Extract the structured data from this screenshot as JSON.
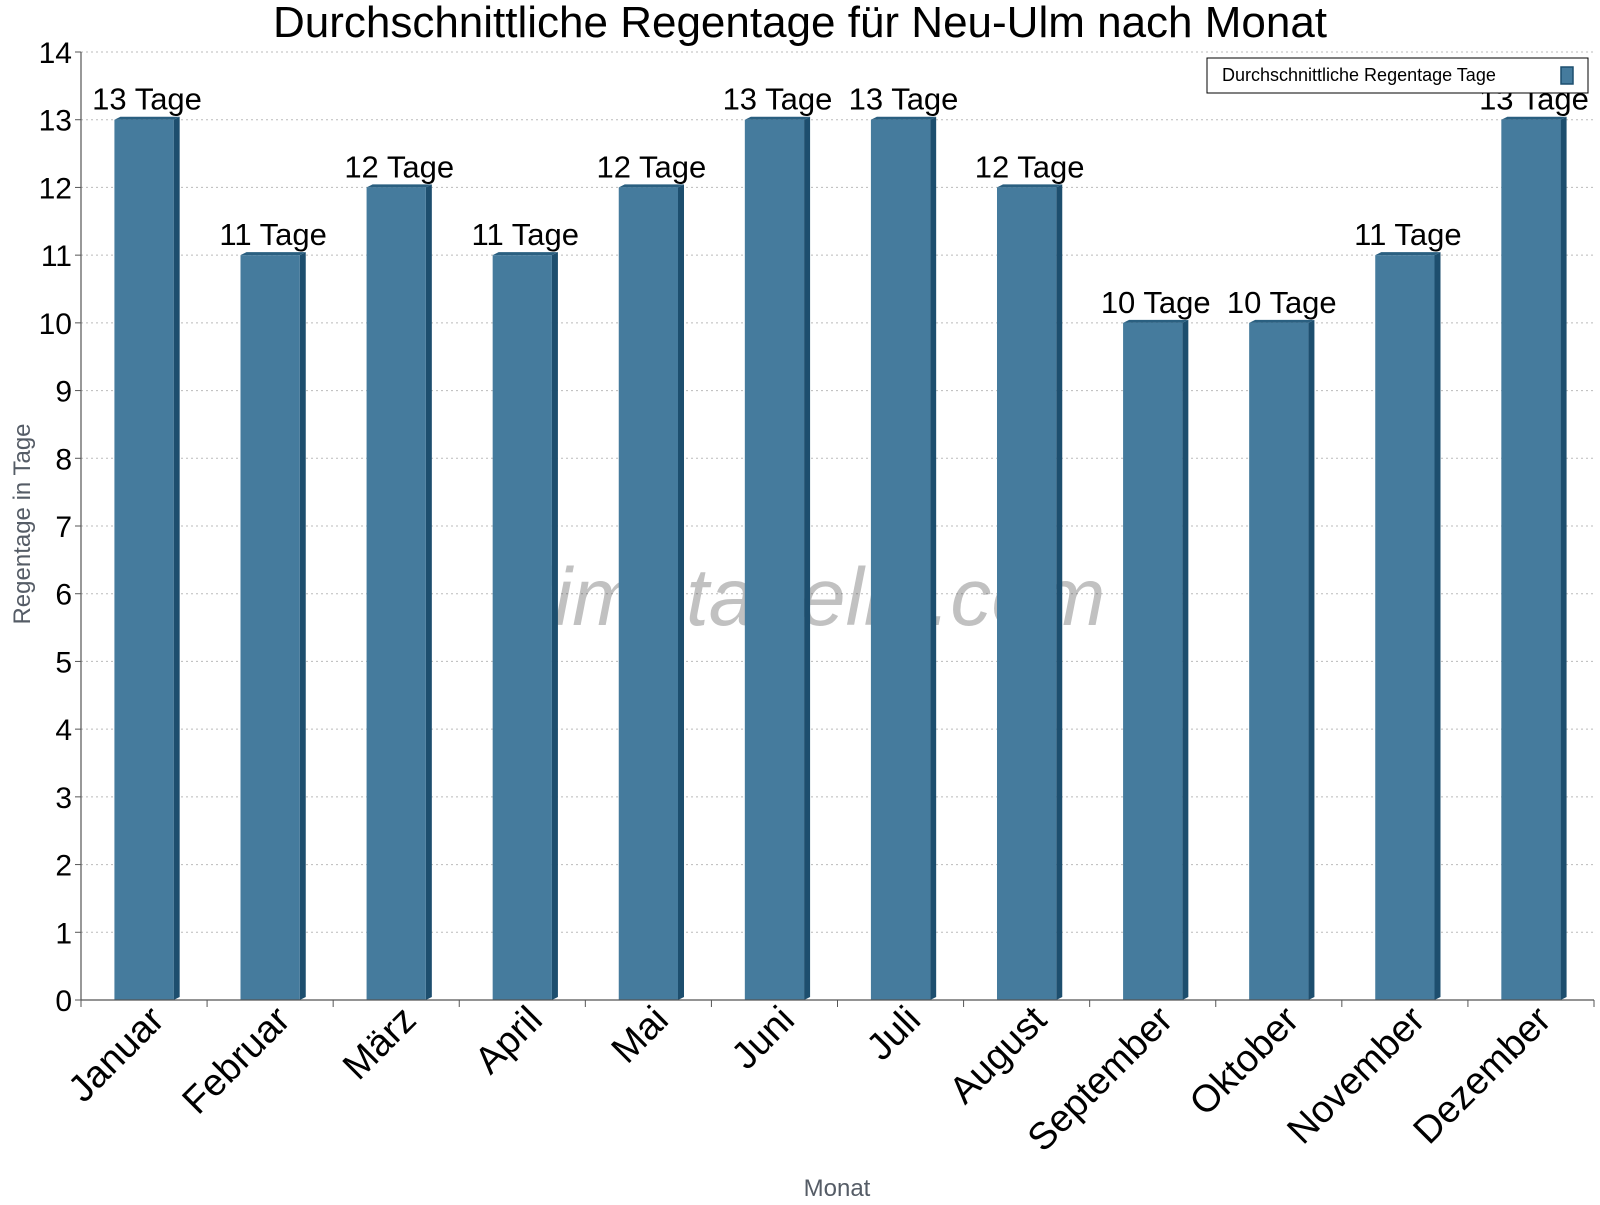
{
  "chart_data": {
    "type": "bar",
    "title": "Durchschnittliche Regentage für Neu-Ulm nach Monat",
    "xlabel": "Monat",
    "ylabel": "Regentage in Tage",
    "ylim": [
      0,
      14
    ],
    "yticks": [
      "0",
      "1",
      "2",
      "3",
      "4",
      "5",
      "6",
      "7",
      "8",
      "9",
      "10",
      "11",
      "12",
      "13",
      "14"
    ],
    "grid": true,
    "legend_position": "top-right",
    "categories": [
      "Januar",
      "Februar",
      "März",
      "April",
      "Mai",
      "Juni",
      "Juli",
      "August",
      "September",
      "Oktober",
      "November",
      "Dezember"
    ],
    "series": [
      {
        "name": "Durchschnittliche Regentage Tage",
        "values": [
          13,
          11,
          12,
          11,
          12,
          13,
          13,
          12,
          10,
          10,
          11,
          13
        ],
        "labels": [
          "13 Tage",
          "11 Tage",
          "12 Tage",
          "11 Tage",
          "12 Tage",
          "13 Tage",
          "13 Tage",
          "12 Tage",
          "10 Tage",
          "10 Tage",
          "11 Tage",
          "13 Tage"
        ]
      }
    ],
    "watermark": "klimatabelle.com",
    "colors": {
      "bar_front": "#457b9d",
      "bar_side": "#1d4e6e",
      "bar_top": "#2a5f80",
      "grid": "#bbbbbb",
      "axis": "#555555"
    }
  }
}
